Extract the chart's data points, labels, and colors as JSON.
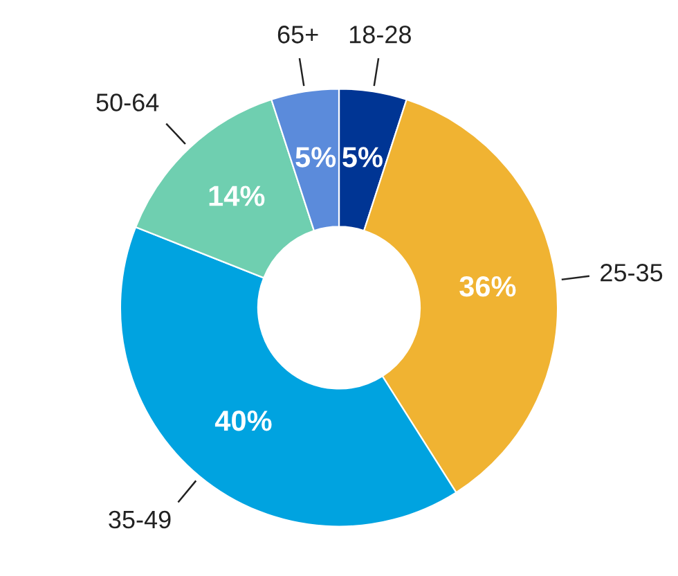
{
  "chart_data": {
    "type": "donut",
    "categories": [
      "18-28",
      "25-35",
      "35-49",
      "50-64",
      "65+"
    ],
    "values": [
      5,
      36,
      40,
      14,
      5
    ],
    "colors": [
      "#003594",
      "#f0b332",
      "#00a3e0",
      "#6fcfb0",
      "#5b8bdb"
    ],
    "value_labels": [
      "5%",
      "36%",
      "40%",
      "14%",
      "5%"
    ],
    "legend": false
  }
}
